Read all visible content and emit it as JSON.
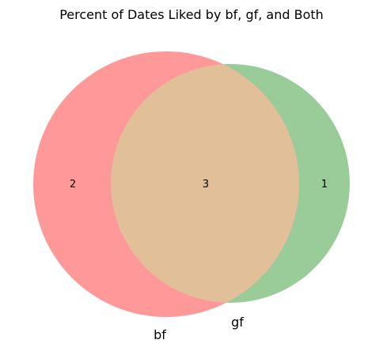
{
  "title": "Percent of Dates Liked by bf, gf, and Both",
  "sets": [
    {
      "name": "bf",
      "color": "#ff9999"
    },
    {
      "name": "gf",
      "color": "#99cc99"
    }
  ],
  "regions": {
    "bf_only": "2",
    "both": "3",
    "gf_only": "1"
  },
  "intersection_color": "#e0bf99"
}
